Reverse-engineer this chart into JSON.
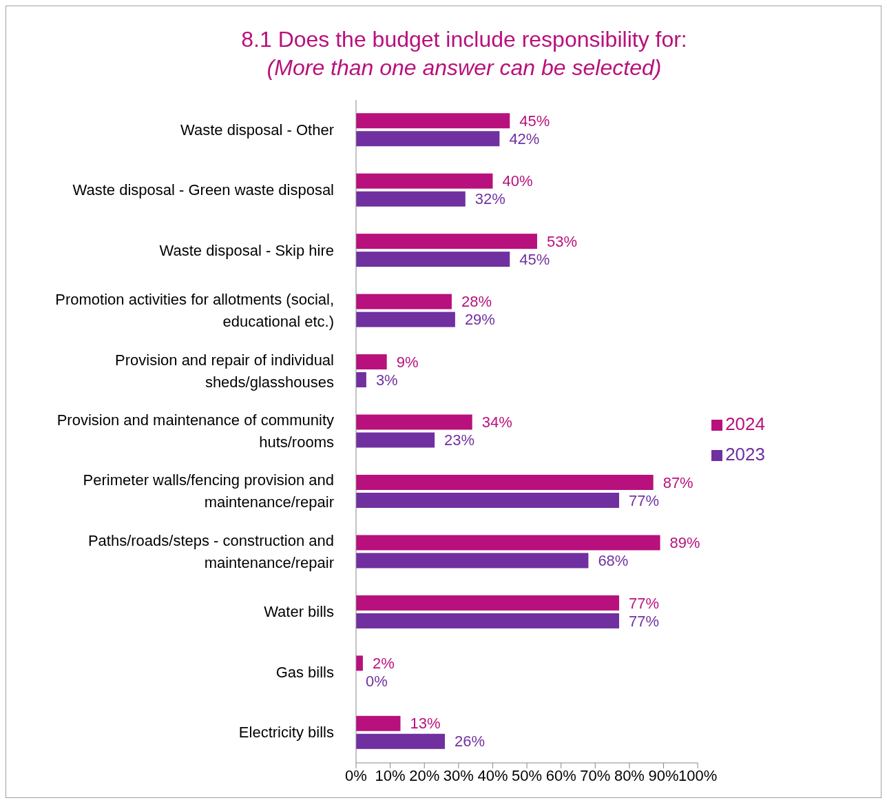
{
  "chart_data": {
    "type": "bar",
    "orientation": "horizontal",
    "title": "8.1  Does the budget include responsibility for:",
    "subtitle": "(More than one answer can be selected)",
    "categories": [
      "Waste disposal - Other",
      "Waste disposal - Green waste disposal",
      "Waste disposal - Skip hire",
      "Promotion activities for allotments (social, educational etc.)",
      "Provision and repair of individual sheds/glasshouses",
      "Provision and maintenance of community huts/rooms",
      "Perimeter walls/fencing provision and maintenance/repair",
      "Paths/roads/steps - construction and maintenance/repair",
      "Water bills",
      "Gas bills",
      "Electricity bills"
    ],
    "series": [
      {
        "name": "2024",
        "color": "#b8107c",
        "values": [
          45,
          40,
          53,
          28,
          9,
          34,
          87,
          89,
          77,
          2,
          13
        ],
        "value_labels": [
          "45%",
          "40%",
          "53%",
          "28%",
          "9%",
          "34%",
          "87%",
          "89%",
          "77%",
          "2%",
          "13%"
        ]
      },
      {
        "name": "2023",
        "color": "#7030a0",
        "values": [
          42,
          32,
          45,
          29,
          3,
          23,
          77,
          68,
          77,
          0,
          26
        ],
        "value_labels": [
          "42%",
          "32%",
          "45%",
          "29%",
          "3%",
          "23%",
          "77%",
          "68%",
          "77%",
          "0%",
          "26%"
        ]
      }
    ],
    "xlim": [
      0,
      100
    ],
    "xticks": [
      {
        "value": 0,
        "label": "0%"
      },
      {
        "value": 10,
        "label": "10%"
      },
      {
        "value": 20,
        "label": "20%"
      },
      {
        "value": 30,
        "label": "30%"
      },
      {
        "value": 40,
        "label": "40%"
      },
      {
        "value": 50,
        "label": "50%"
      },
      {
        "value": 60,
        "label": "60%"
      },
      {
        "value": 70,
        "label": "70%"
      },
      {
        "value": 80,
        "label": "80%"
      },
      {
        "value": 90,
        "label": "90%"
      },
      {
        "value": 100,
        "label": "100%"
      }
    ],
    "grid": false,
    "legend": "right"
  }
}
